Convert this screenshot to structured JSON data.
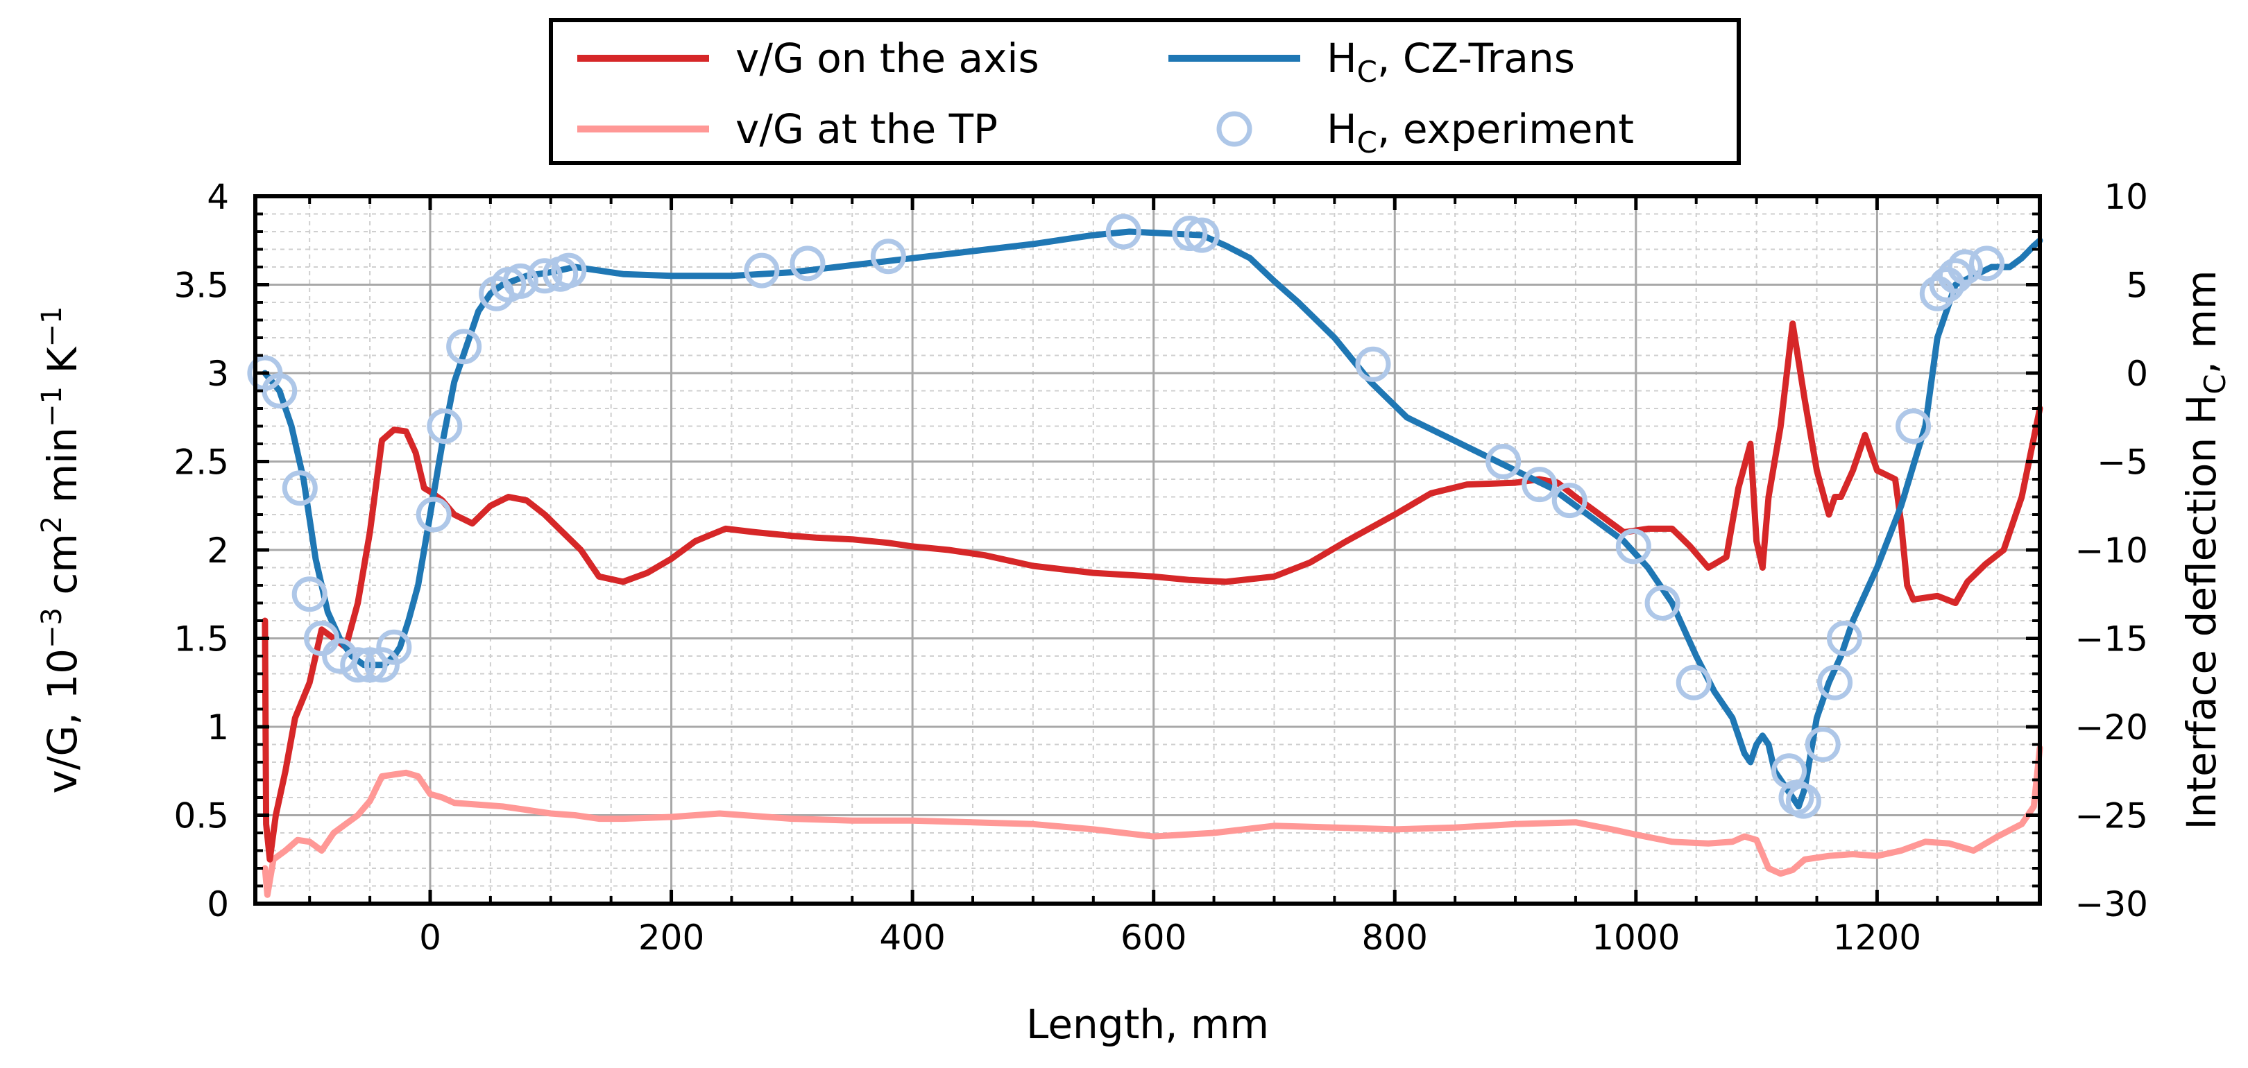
{
  "chart_data": {
    "type": "line",
    "title": "",
    "xlabel": "Length, mm",
    "ylabel_left": "v/G, 10^-3 cm^2 min^-1 K^-1",
    "ylabel_right": "Interface deflection H_C, mm",
    "xlim": [
      -145,
      1335
    ],
    "ylim_left": [
      0,
      4
    ],
    "ylim_right": [
      -30,
      10
    ],
    "x_ticks": [
      0,
      200,
      400,
      600,
      800,
      1000,
      1200
    ],
    "x_tick_labels": [
      "0",
      "200",
      "400",
      "600",
      "800",
      "1000",
      "1200"
    ],
    "y_left_ticks": [
      0,
      0.5,
      1,
      1.5,
      2,
      2.5,
      3,
      3.5,
      4
    ],
    "y_left_tick_labels": [
      "0",
      "0.5",
      "1",
      "1.5",
      "2",
      "2.5",
      "3",
      "3.5",
      "4"
    ],
    "y_right_ticks": [
      -30,
      -25,
      -20,
      -15,
      -10,
      -5,
      0,
      5,
      10
    ],
    "y_right_tick_labels": [
      "−30",
      "−25",
      "−20",
      "−15",
      "−10",
      "−5",
      "0",
      "5",
      "10"
    ],
    "grid": true,
    "legend_position": "top-center",
    "legend": [
      "v/G on the axis",
      "v/G at the TP",
      "H_C, CZ-Trans",
      "H_C, experiment"
    ],
    "series": [
      {
        "name": "v/G on the axis",
        "axis": "left",
        "kind": "line",
        "color": "#d62728",
        "x": [
          -137,
          -136,
          -133,
          -128,
          -120,
          -112,
          -100,
          -90,
          -80,
          -70,
          -60,
          -50,
          -40,
          -30,
          -20,
          -12,
          -5,
          0,
          10,
          20,
          35,
          50,
          65,
          80,
          95,
          110,
          125,
          140,
          160,
          180,
          200,
          220,
          245,
          270,
          300,
          320,
          350,
          380,
          400,
          430,
          460,
          500,
          550,
          600,
          630,
          660,
          700,
          730,
          760,
          800,
          830,
          860,
          900,
          920,
          935,
          950,
          970,
          990,
          1010,
          1030,
          1045,
          1060,
          1075,
          1085,
          1095,
          1100,
          1105,
          1110,
          1120,
          1130,
          1140,
          1150,
          1160,
          1165,
          1170,
          1180,
          1190,
          1200,
          1215,
          1220,
          1225,
          1230,
          1250,
          1265,
          1275,
          1290,
          1305,
          1320,
          1335
        ],
        "values": [
          1.6,
          0.45,
          0.25,
          0.5,
          0.75,
          1.05,
          1.25,
          1.55,
          1.5,
          1.45,
          1.7,
          2.1,
          2.62,
          2.68,
          2.67,
          2.55,
          2.35,
          2.33,
          2.28,
          2.2,
          2.15,
          2.25,
          2.3,
          2.28,
          2.2,
          2.1,
          2.0,
          1.85,
          1.82,
          1.87,
          1.95,
          2.05,
          2.12,
          2.1,
          2.08,
          2.07,
          2.06,
          2.04,
          2.02,
          2.0,
          1.97,
          1.91,
          1.87,
          1.85,
          1.83,
          1.82,
          1.85,
          1.93,
          2.05,
          2.2,
          2.32,
          2.37,
          2.38,
          2.4,
          2.38,
          2.3,
          2.2,
          2.1,
          2.12,
          2.12,
          2.02,
          1.9,
          1.96,
          2.35,
          2.6,
          2.05,
          1.9,
          2.3,
          2.7,
          3.28,
          2.85,
          2.45,
          2.2,
          2.3,
          2.3,
          2.45,
          2.65,
          2.45,
          2.4,
          2.15,
          1.8,
          1.72,
          1.74,
          1.7,
          1.82,
          1.92,
          2.0,
          2.3,
          2.8
        ]
      },
      {
        "name": "v/G at the TP",
        "axis": "left",
        "kind": "line",
        "color": "#ff9896",
        "x": [
          -137,
          -135,
          -130,
          -120,
          -110,
          -100,
          -90,
          -80,
          -70,
          -60,
          -50,
          -40,
          -30,
          -20,
          -10,
          0,
          10,
          20,
          40,
          60,
          80,
          100,
          120,
          140,
          160,
          200,
          240,
          280,
          300,
          350,
          400,
          450,
          500,
          550,
          600,
          650,
          700,
          750,
          800,
          850,
          900,
          950,
          980,
          1000,
          1030,
          1060,
          1080,
          1090,
          1100,
          1110,
          1120,
          1130,
          1140,
          1160,
          1180,
          1200,
          1220,
          1240,
          1260,
          1280,
          1300,
          1320,
          1330,
          1335
        ],
        "values": [
          0.2,
          0.05,
          0.25,
          0.3,
          0.36,
          0.35,
          0.3,
          0.4,
          0.45,
          0.5,
          0.58,
          0.72,
          0.73,
          0.74,
          0.72,
          0.62,
          0.6,
          0.57,
          0.56,
          0.55,
          0.53,
          0.51,
          0.5,
          0.48,
          0.48,
          0.49,
          0.51,
          0.49,
          0.48,
          0.47,
          0.47,
          0.46,
          0.45,
          0.42,
          0.38,
          0.4,
          0.44,
          0.43,
          0.42,
          0.43,
          0.45,
          0.46,
          0.42,
          0.39,
          0.35,
          0.34,
          0.35,
          0.38,
          0.36,
          0.2,
          0.17,
          0.19,
          0.25,
          0.27,
          0.28,
          0.27,
          0.3,
          0.35,
          0.34,
          0.3,
          0.38,
          0.45,
          0.55,
          0.88
        ]
      },
      {
        "name": "H_C, CZ-Trans",
        "axis": "right",
        "kind": "line",
        "color": "#1f77b4",
        "x": [
          -137,
          -125,
          -115,
          -105,
          -95,
          -85,
          -75,
          -65,
          -55,
          -45,
          -38,
          -30,
          -25,
          -18,
          -10,
          0,
          10,
          20,
          30,
          40,
          50,
          60,
          80,
          100,
          120,
          140,
          160,
          200,
          250,
          300,
          350,
          400,
          450,
          500,
          550,
          580,
          610,
          640,
          660,
          680,
          700,
          720,
          750,
          780,
          810,
          840,
          870,
          900,
          930,
          960,
          990,
          1010,
          1030,
          1050,
          1065,
          1080,
          1090,
          1095,
          1100,
          1105,
          1110,
          1115,
          1120,
          1130,
          1135,
          1140,
          1145,
          1150,
          1160,
          1170,
          1180,
          1200,
          1220,
          1240,
          1250,
          1265,
          1280,
          1295,
          1310,
          1320,
          1330,
          1335
        ],
        "values": [
          0,
          -1,
          -3,
          -6,
          -10.5,
          -13.5,
          -15,
          -16,
          -16.5,
          -16.5,
          -16.5,
          -16,
          -15.5,
          -14,
          -12,
          -8,
          -4,
          -0.5,
          1.5,
          3.5,
          4.5,
          5,
          5.5,
          5.7,
          6,
          5.8,
          5.6,
          5.5,
          5.5,
          5.7,
          6.1,
          6.5,
          6.9,
          7.3,
          7.8,
          8,
          7.9,
          7.8,
          7.2,
          6.5,
          5.2,
          4,
          2,
          -0.5,
          -2.5,
          -3.5,
          -4.5,
          -5.5,
          -6.5,
          -8,
          -9.5,
          -11,
          -13,
          -16,
          -18,
          -19.5,
          -21.5,
          -22,
          -21,
          -20.5,
          -21,
          -22.5,
          -23,
          -24,
          -24.5,
          -23.5,
          -21.5,
          -19.5,
          -17.5,
          -16,
          -14,
          -11,
          -7.5,
          -3,
          2,
          5,
          5.5,
          6,
          6,
          6.5,
          7.2,
          7.5
        ]
      },
      {
        "name": "H_C, experiment",
        "axis": "right",
        "kind": "scatter",
        "color": "#aec7e8",
        "x": [
          -137,
          -125,
          -108,
          -100,
          -90,
          -75,
          -60,
          -50,
          -40,
          -30,
          3,
          12,
          28,
          55,
          65,
          75,
          95,
          108,
          115,
          275,
          313,
          380,
          575,
          630,
          640,
          782,
          890,
          920,
          945,
          998,
          1022,
          1048,
          1127,
          1133,
          1139,
          1155,
          1165,
          1173,
          1230,
          1250,
          1258,
          1265,
          1273,
          1291
        ],
        "values": [
          0,
          -1,
          -6.5,
          -12.5,
          -15,
          -16,
          -16.5,
          -16.5,
          -16.5,
          -15.5,
          -8,
          -3,
          1.5,
          4.5,
          5,
          5.2,
          5.5,
          5.6,
          5.8,
          5.8,
          6.2,
          6.6,
          8,
          7.9,
          7.8,
          0.5,
          -5,
          -6.3,
          -7.2,
          -9.8,
          -13,
          -17.5,
          -22.5,
          -24,
          -24.2,
          -21,
          -17.5,
          -15,
          -3,
          4.5,
          5,
          5.5,
          6,
          6.2
        ]
      }
    ]
  }
}
